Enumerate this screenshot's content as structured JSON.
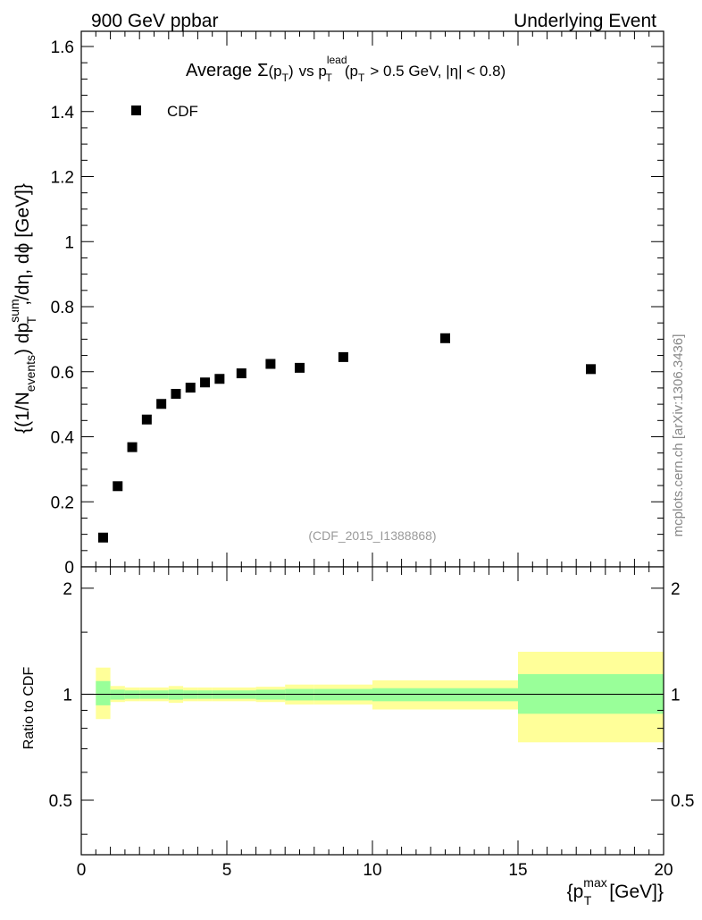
{
  "header": {
    "left": "900 GeV ppbar",
    "right": "Underlying Event"
  },
  "side_label": "mcplots.cern.ch [arXiv:1306.3436]",
  "analysis_ref": "(CDF_2015_I1388868)",
  "chart_data": [
    {
      "type": "scatter",
      "title": {
        "average": "Average",
        "sigma": "Σ",
        "pt_open": "(p",
        "pt_sub": "T",
        "pt_close": ")",
        "vs": "vs p",
        "lead_sup": "lead",
        "lead_sub": "T",
        "cut_open": "(p",
        "cut_sub": "T",
        "cut_rest": "> 0.5 GeV, |η| < 0.8)"
      },
      "ylabel": {
        "part1": "{(1/N",
        "events_sub": "events",
        "part2": ") dp",
        "sum_sup": "sum",
        "t_sub": "T",
        "part3": ",/dη, dϕ [GeV]}"
      },
      "xlim": [
        0,
        20
      ],
      "ylim": [
        0,
        1.65
      ],
      "yticks": [
        "0",
        "0.2",
        "0.4",
        "0.6",
        "0.8",
        "1",
        "1.2",
        "1.4",
        "1.6"
      ],
      "legend": {
        "position": "top-left",
        "entries": [
          "CDF"
        ]
      },
      "series": [
        {
          "name": "CDF",
          "x": [
            0.75,
            1.25,
            1.75,
            2.25,
            2.75,
            3.25,
            3.75,
            4.25,
            4.75,
            5.5,
            6.5,
            7.5,
            9.0,
            12.5,
            17.5
          ],
          "y": [
            0.09,
            0.248,
            0.368,
            0.453,
            0.501,
            0.532,
            0.551,
            0.567,
            0.578,
            0.595,
            0.624,
            0.612,
            0.645,
            0.703,
            0.608
          ]
        }
      ]
    },
    {
      "type": "area",
      "ylabel": "Ratio to CDF",
      "xlabel": {
        "open": "{p",
        "max_sup": "max",
        "t_sub": "T",
        "rest": "[GeV]}"
      },
      "xlim": [
        0,
        20
      ],
      "ylim": [
        0.35,
        2.3
      ],
      "log_y": true,
      "xticks": [
        "0",
        "5",
        "10",
        "15",
        "20"
      ],
      "yticks": [
        "0.5",
        "1",
        "2"
      ],
      "reference_line": 1,
      "bins": [
        {
          "lo": 0.5,
          "hi": 1.0,
          "inner": [
            0.93,
            1.09
          ],
          "outer": [
            0.85,
            1.19
          ]
        },
        {
          "lo": 1.0,
          "hi": 1.5,
          "inner": [
            0.965,
            1.03
          ],
          "outer": [
            0.95,
            1.055
          ]
        },
        {
          "lo": 1.5,
          "hi": 2.0,
          "inner": [
            0.97,
            1.025
          ],
          "outer": [
            0.955,
            1.045
          ]
        },
        {
          "lo": 2.0,
          "hi": 2.5,
          "inner": [
            0.97,
            1.025
          ],
          "outer": [
            0.955,
            1.045
          ]
        },
        {
          "lo": 2.5,
          "hi": 3.0,
          "inner": [
            0.97,
            1.025
          ],
          "outer": [
            0.955,
            1.045
          ]
        },
        {
          "lo": 3.0,
          "hi": 3.5,
          "inner": [
            0.965,
            1.03
          ],
          "outer": [
            0.945,
            1.055
          ]
        },
        {
          "lo": 3.5,
          "hi": 4.0,
          "inner": [
            0.97,
            1.025
          ],
          "outer": [
            0.955,
            1.045
          ]
        },
        {
          "lo": 4.0,
          "hi": 4.5,
          "inner": [
            0.97,
            1.025
          ],
          "outer": [
            0.955,
            1.045
          ]
        },
        {
          "lo": 4.5,
          "hi": 5.0,
          "inner": [
            0.97,
            1.025
          ],
          "outer": [
            0.955,
            1.045
          ]
        },
        {
          "lo": 5.0,
          "hi": 6.0,
          "inner": [
            0.97,
            1.025
          ],
          "outer": [
            0.955,
            1.045
          ]
        },
        {
          "lo": 6.0,
          "hi": 7.0,
          "inner": [
            0.965,
            1.03
          ],
          "outer": [
            0.95,
            1.05
          ]
        },
        {
          "lo": 7.0,
          "hi": 8.0,
          "inner": [
            0.96,
            1.035
          ],
          "outer": [
            0.935,
            1.065
          ]
        },
        {
          "lo": 8.0,
          "hi": 10.0,
          "inner": [
            0.96,
            1.035
          ],
          "outer": [
            0.935,
            1.065
          ]
        },
        {
          "lo": 10.0,
          "hi": 15.0,
          "inner": [
            0.955,
            1.04
          ],
          "outer": [
            0.905,
            1.095
          ]
        },
        {
          "lo": 15.0,
          "hi": 20.0,
          "inner": [
            0.88,
            1.14
          ],
          "outer": [
            0.73,
            1.32
          ]
        }
      ]
    }
  ],
  "colors": {
    "band_inner": "#99ff99",
    "band_outer": "#ffff99",
    "marker": "#000000"
  }
}
